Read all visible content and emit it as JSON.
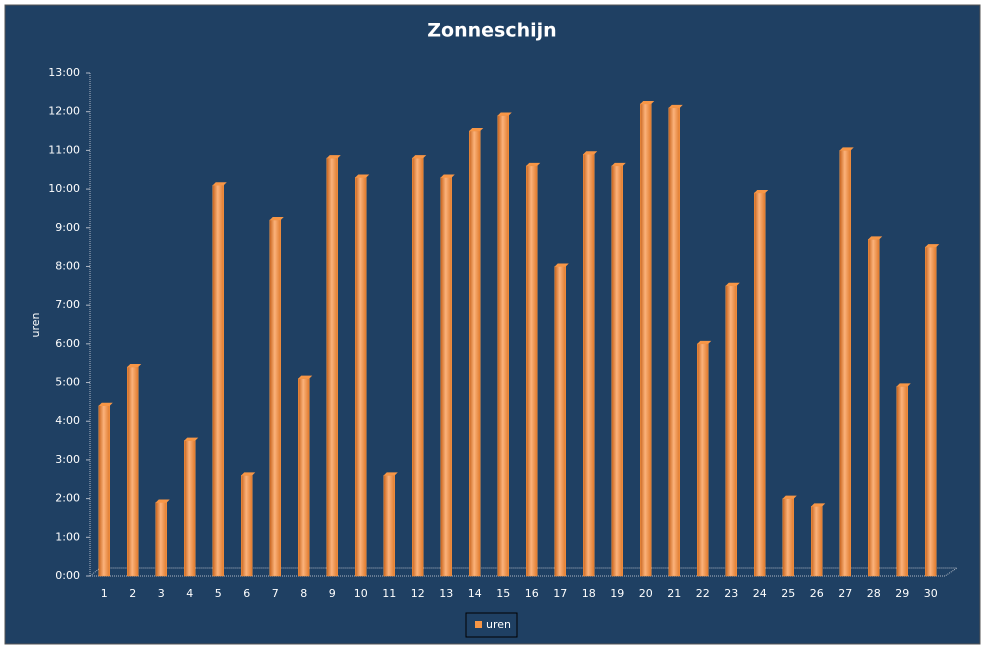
{
  "chart_data": {
    "type": "bar",
    "title": "Zonneschijn",
    "y_label": "uren",
    "categories": [
      "1",
      "2",
      "3",
      "4",
      "5",
      "6",
      "7",
      "8",
      "9",
      "10",
      "11",
      "12",
      "13",
      "14",
      "15",
      "16",
      "17",
      "18",
      "19",
      "20",
      "21",
      "22",
      "23",
      "24",
      "25",
      "26",
      "27",
      "28",
      "29",
      "30"
    ],
    "series": [
      {
        "name": "uren",
        "color": "#f79646",
        "values": [
          4.4,
          5.4,
          1.9,
          3.5,
          10.1,
          2.6,
          9.2,
          5.1,
          10.8,
          10.3,
          2.6,
          10.8,
          10.3,
          11.5,
          11.9,
          10.6,
          8.0,
          10.9,
          10.6,
          12.2,
          12.1,
          6.0,
          7.5,
          9.9,
          2.0,
          1.8,
          11.0,
          8.7,
          4.9,
          8.5
        ]
      }
    ],
    "ylim": [
      0,
      13
    ],
    "yticks": [
      {
        "value": 0,
        "label": "0:00"
      },
      {
        "value": 1,
        "label": "1:00"
      },
      {
        "value": 2,
        "label": "2:00"
      },
      {
        "value": 3,
        "label": "3:00"
      },
      {
        "value": 4,
        "label": "4:00"
      },
      {
        "value": 5,
        "label": "5:00"
      },
      {
        "value": 6,
        "label": "6:00"
      },
      {
        "value": 7,
        "label": "7:00"
      },
      {
        "value": 8,
        "label": "8:00"
      },
      {
        "value": 9,
        "label": "9:00"
      },
      {
        "value": 10,
        "label": "10:00"
      },
      {
        "value": 11,
        "label": "11:00"
      },
      {
        "value": 12,
        "label": "12:00"
      },
      {
        "value": 13,
        "label": "13:00"
      }
    ],
    "grid": false,
    "legend": "bottom"
  }
}
